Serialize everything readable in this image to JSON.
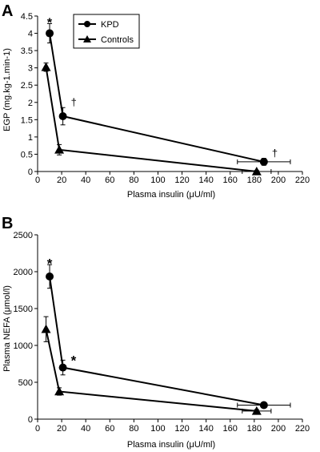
{
  "chart_data": [
    {
      "panel": "A",
      "type": "line",
      "xlabel": "Plasma insulin (μU/ml)",
      "ylabel": "EGP (mg.kg-1.min-1)",
      "xlim": [
        0,
        220
      ],
      "ylim": [
        0,
        4.5
      ],
      "x_ticks": [
        0,
        20,
        40,
        60,
        80,
        100,
        120,
        140,
        160,
        180,
        200,
        220
      ],
      "y_ticks": [
        0,
        0.5,
        1,
        1.5,
        2,
        2.5,
        3,
        3.5,
        4,
        4.5
      ],
      "y_tick_labels": [
        "0",
        "0.5",
        "1",
        "1.5",
        "2",
        "2.5",
        "3",
        "3.5",
        "4",
        "4.5"
      ],
      "grid": false,
      "legend": {
        "placement": "top-center",
        "entries": [
          "KPD",
          "Controls"
        ]
      },
      "series": [
        {
          "name": "KPD",
          "marker": "circle",
          "points": [
            {
              "x": 10,
              "y": 4.0,
              "yerr": 0.28,
              "annotation": "*"
            },
            {
              "x": 21,
              "y": 1.6,
              "yerr": 0.25,
              "annotation": "†"
            },
            {
              "x": 188,
              "y": 0.28,
              "yerr": 0.1,
              "xerr": 22,
              "annotation": "†"
            }
          ]
        },
        {
          "name": "Controls",
          "marker": "triangle",
          "points": [
            {
              "x": 7,
              "y": 3.02,
              "yerr": 0.12
            },
            {
              "x": 18,
              "y": 0.63,
              "yerr": 0.15
            },
            {
              "x": 182,
              "y": 0.0,
              "yerr": 0.03,
              "xerr": 12
            }
          ]
        }
      ]
    },
    {
      "panel": "B",
      "type": "line",
      "xlabel": "Plasma insulin (μU/ml)",
      "ylabel": "Plasma NEFA (μmol/l)",
      "xlim": [
        0,
        220
      ],
      "ylim": [
        0,
        2500
      ],
      "x_ticks": [
        0,
        20,
        40,
        60,
        80,
        100,
        120,
        140,
        160,
        180,
        200,
        220
      ],
      "y_ticks": [
        0,
        500,
        1000,
        1500,
        2000,
        2500
      ],
      "y_tick_labels": [
        "0",
        "500",
        "1000",
        "1500",
        "2000",
        "2500"
      ],
      "grid": false,
      "series": [
        {
          "name": "KPD",
          "marker": "circle",
          "points": [
            {
              "x": 10,
              "y": 1935,
              "yerr": 160,
              "annotation": "*"
            },
            {
              "x": 21,
              "y": 700,
              "yerr": 100,
              "annotation": "*"
            },
            {
              "x": 188,
              "y": 190,
              "yerr": 20,
              "xerr": 22
            }
          ]
        },
        {
          "name": "Controls",
          "marker": "triangle",
          "points": [
            {
              "x": 7,
              "y": 1220,
              "yerr": 170
            },
            {
              "x": 18,
              "y": 375,
              "yerr": 50
            },
            {
              "x": 182,
              "y": 110,
              "yerr": 20,
              "xerr": 12
            }
          ]
        }
      ]
    }
  ]
}
